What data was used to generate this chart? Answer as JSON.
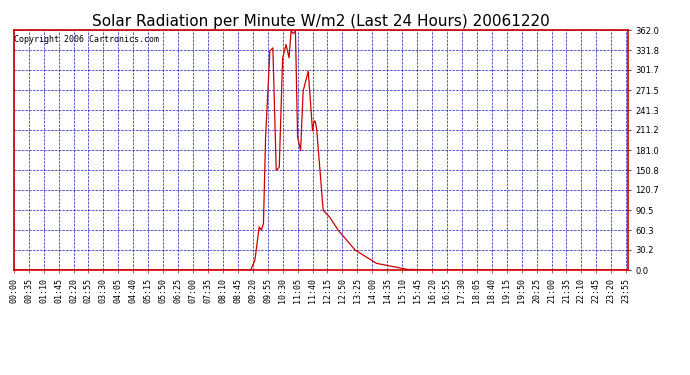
{
  "title": "Solar Radiation per Minute W/m2 (Last 24 Hours) 20061220",
  "copyright": "Copyright 2006 Cartronics.com",
  "background_color": "#ffffff",
  "plot_bg_color": "#ffffff",
  "line_color": "#cc0000",
  "grid_color": "#0000bb",
  "axis_color": "#cc0000",
  "ylim": [
    0.0,
    362.0
  ],
  "yticks": [
    0.0,
    30.2,
    60.3,
    90.5,
    120.7,
    150.8,
    181.0,
    211.2,
    241.3,
    271.5,
    301.7,
    331.8,
    362.0
  ],
  "title_fontsize": 11,
  "copyright_fontsize": 6,
  "tick_fontsize": 6,
  "num_minutes": 1440,
  "x_tick_interval": 35
}
